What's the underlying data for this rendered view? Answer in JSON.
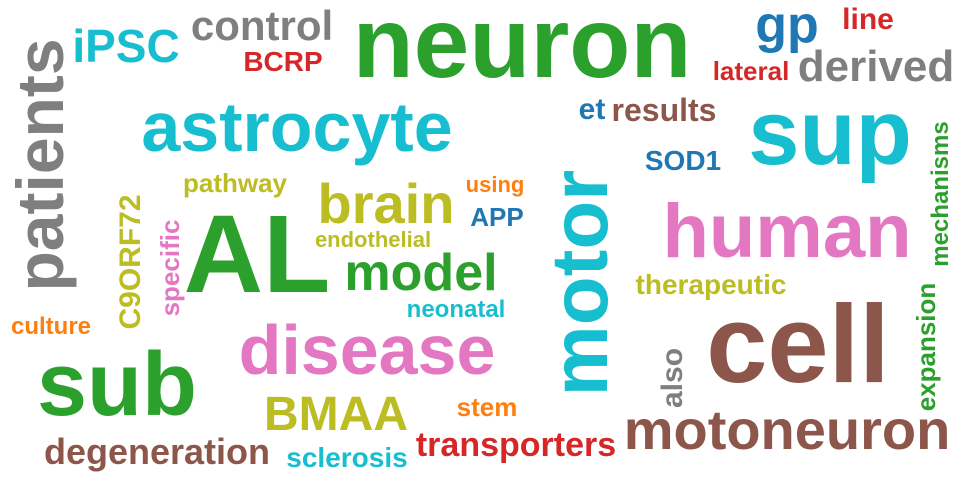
{
  "palette": {
    "green": "#2ca02c",
    "cyan": "#17becf",
    "gray": "#7f7f7f",
    "red": "#d62728",
    "blue": "#1f77b4",
    "brown": "#8c564b",
    "pink": "#e377c2",
    "olive": "#bcbd22",
    "orange": "#ff7f0e"
  },
  "words": [
    {
      "text": "neuron",
      "color": "green"
    },
    {
      "text": "patients",
      "color": "gray"
    },
    {
      "text": "iPSC",
      "color": "cyan"
    },
    {
      "text": "control",
      "color": "gray"
    },
    {
      "text": "BCRP",
      "color": "red"
    },
    {
      "text": "gp",
      "color": "blue"
    },
    {
      "text": "line",
      "color": "red"
    },
    {
      "text": "lateral",
      "color": "red"
    },
    {
      "text": "derived",
      "color": "gray"
    },
    {
      "text": "astrocyte",
      "color": "cyan"
    },
    {
      "text": "et",
      "color": "blue"
    },
    {
      "text": "results",
      "color": "brown"
    },
    {
      "text": "sup",
      "color": "cyan"
    },
    {
      "text": "mechanisms",
      "color": "green"
    },
    {
      "text": "SOD1",
      "color": "blue"
    },
    {
      "text": "pathway",
      "color": "olive"
    },
    {
      "text": "brain",
      "color": "olive"
    },
    {
      "text": "using",
      "color": "orange"
    },
    {
      "text": "APP",
      "color": "blue"
    },
    {
      "text": "motor",
      "color": "cyan"
    },
    {
      "text": "human",
      "color": "pink"
    },
    {
      "text": "C9ORF72",
      "color": "olive"
    },
    {
      "text": "specific",
      "color": "pink"
    },
    {
      "text": "AL",
      "color": "green"
    },
    {
      "text": "endothelial",
      "color": "olive"
    },
    {
      "text": "model",
      "color": "green"
    },
    {
      "text": "therapeutic",
      "color": "olive"
    },
    {
      "text": "expansion",
      "color": "green"
    },
    {
      "text": "neonatal",
      "color": "cyan"
    },
    {
      "text": "culture",
      "color": "orange"
    },
    {
      "text": "disease",
      "color": "pink"
    },
    {
      "text": "cell",
      "color": "brown"
    },
    {
      "text": "sub",
      "color": "green"
    },
    {
      "text": "also",
      "color": "gray"
    },
    {
      "text": "BMAA",
      "color": "olive"
    },
    {
      "text": "stem",
      "color": "orange"
    },
    {
      "text": "motoneuron",
      "color": "brown"
    },
    {
      "text": "transporters",
      "color": "red"
    },
    {
      "text": "degeneration",
      "color": "brown"
    },
    {
      "text": "sclerosis",
      "color": "cyan"
    }
  ]
}
